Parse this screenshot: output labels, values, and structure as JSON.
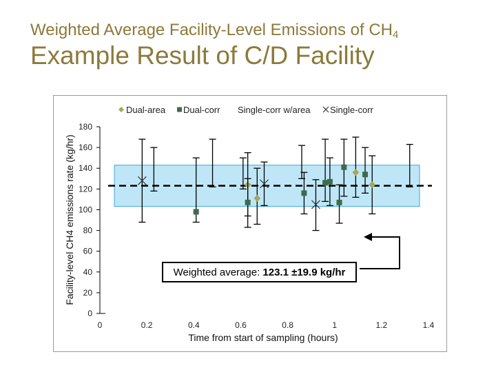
{
  "page": {
    "subtitle_main": "Weighted Average Facility-Level Emissions of CH",
    "subtitle_sub": "4",
    "title": "Example Result of C/D Facility",
    "annotation_prefix": "Weighted average: ",
    "annotation_value": "123.1 ±19.9 kg/hr"
  },
  "colors": {
    "title": "#8b7a3a",
    "band_fill": "#bfe6f7",
    "band_stroke": "#3ca7d8",
    "dual_area": "#a3a85a",
    "dual_corr": "#3f6a4d",
    "single_corr": "#333333"
  },
  "chart_data": {
    "type": "scatter",
    "title": "",
    "xlabel": "Time from start of sampling (hours)",
    "ylabel": "Facility-level CH4 emissions rate (kg/hr)",
    "xlim": [
      0,
      1.4
    ],
    "ylim": [
      0,
      180
    ],
    "xticks": [
      0,
      0.2,
      0.4,
      0.6,
      0.8,
      1,
      1.2,
      1.4
    ],
    "xtick_labels": [
      "0",
      "0.2",
      "0.4",
      "0.6",
      "0.8",
      "1",
      "1.2",
      "1.4"
    ],
    "yticks": [
      0,
      20,
      40,
      60,
      80,
      100,
      120,
      140,
      160,
      180
    ],
    "ytick_labels": [
      "0",
      "20",
      "40",
      "60",
      "80",
      "100",
      "120",
      "140",
      "160",
      "180"
    ],
    "legend": [
      "Dual-area",
      "Dual-corr",
      "Single-corr w/area",
      "Single-corr"
    ],
    "weighted_average": 123.1,
    "uncertainty": 19.9,
    "series": [
      {
        "name": "Dual-area",
        "marker": "diamond",
        "points": [
          {
            "x": 0.63,
            "y": 124,
            "lo": 94,
            "hi": 155
          },
          {
            "x": 0.67,
            "y": 111,
            "lo": 86,
            "hi": 140
          },
          {
            "x": 1.09,
            "y": 136,
            "lo": 112,
            "hi": 170
          },
          {
            "x": 1.16,
            "y": 124,
            "lo": 96,
            "hi": 152
          }
        ]
      },
      {
        "name": "Dual-corr",
        "marker": "square",
        "points": [
          {
            "x": 0.41,
            "y": 98,
            "lo": 88,
            "hi": 150
          },
          {
            "x": 0.63,
            "y": 107,
            "lo": 83,
            "hi": 130
          },
          {
            "x": 0.87,
            "y": 116,
            "lo": 96,
            "hi": 136
          },
          {
            "x": 0.96,
            "y": 126,
            "lo": 108,
            "hi": 168
          },
          {
            "x": 0.98,
            "y": 127,
            "lo": 104,
            "hi": 150
          },
          {
            "x": 1.02,
            "y": 107,
            "lo": 87,
            "hi": 124
          },
          {
            "x": 1.04,
            "y": 141,
            "lo": 113,
            "hi": 168
          },
          {
            "x": 1.13,
            "y": 134,
            "lo": 116,
            "hi": 160
          }
        ]
      },
      {
        "name": "Single-corr",
        "marker": "x",
        "points": [
          {
            "x": 0.18,
            "y": 128,
            "lo": 88,
            "hi": 168
          },
          {
            "x": 0.7,
            "y": 125,
            "lo": 104,
            "hi": 146
          },
          {
            "x": 0.92,
            "y": 105,
            "lo": 80,
            "hi": 129
          }
        ]
      }
    ],
    "extra_error_bars": [
      {
        "x": 0.23,
        "lo": 118,
        "hi": 160
      },
      {
        "x": 0.48,
        "lo": 122,
        "hi": 168
      },
      {
        "x": 0.61,
        "lo": 120,
        "hi": 150
      },
      {
        "x": 0.86,
        "lo": 130,
        "hi": 162
      },
      {
        "x": 1.32,
        "lo": 122,
        "hi": 163
      }
    ]
  }
}
